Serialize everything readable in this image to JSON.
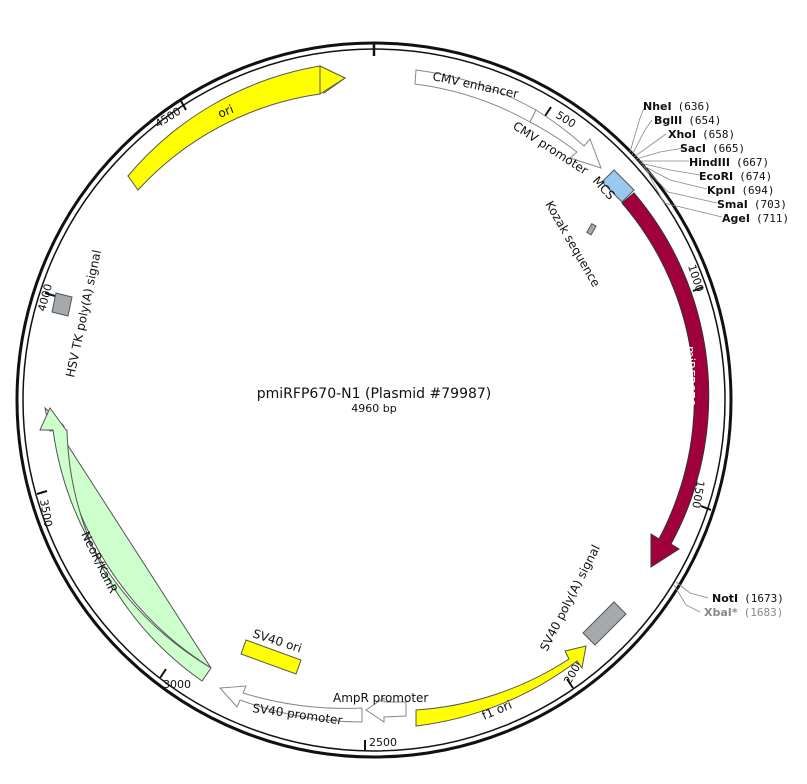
{
  "plasmid": {
    "title": "pmiRFP670-N1 (Plasmid #79987)",
    "size_label": "4960 bp"
  },
  "ticks": [
    "500",
    "1000",
    "1500",
    "2000",
    "2500",
    "3000",
    "3500",
    "4000",
    "4500"
  ],
  "features": {
    "cmv_enhancer": "CMV enhancer",
    "cmv_promoter": "CMV promoter",
    "mcs": "MCS",
    "kozak": "Kozak sequence",
    "mirfp670": "miRFP670",
    "sv40_polya": "SV40 poly(A) signal",
    "f1_ori": "f1 ori",
    "ampr_promoter": "AmpR promoter",
    "sv40_promoter": "SV40 promoter",
    "sv40_ori": "SV40 ori",
    "neor_kanr": "NeoR/KanR",
    "hsv_tk_polya": "HSV TK poly(A) signal",
    "ori": "ori"
  },
  "enzymes_top": [
    {
      "name": "NheI",
      "pos": "(636)"
    },
    {
      "name": "BglII",
      "pos": "(654)"
    },
    {
      "name": "XhoI",
      "pos": "(658)"
    },
    {
      "name": "SacI",
      "pos": "(665)"
    },
    {
      "name": "HindIII",
      "pos": "(667)"
    },
    {
      "name": "EcoRI",
      "pos": "(674)"
    },
    {
      "name": "KpnI",
      "pos": "(694)"
    },
    {
      "name": "SmaI",
      "pos": "(703)"
    },
    {
      "name": "AgeI",
      "pos": "(711)"
    }
  ],
  "enzymes_bottom": [
    {
      "name": "NotI",
      "pos": "(1673)"
    },
    {
      "name": "XbaI*",
      "pos": "(1683)"
    }
  ],
  "colors": {
    "ori": "#ffff00",
    "mirfp670": "#a0003c",
    "mcs": "#99c8f0",
    "neor": "#ccffcc",
    "polya": "#a4a9ad",
    "promoter": "#ffffff"
  }
}
